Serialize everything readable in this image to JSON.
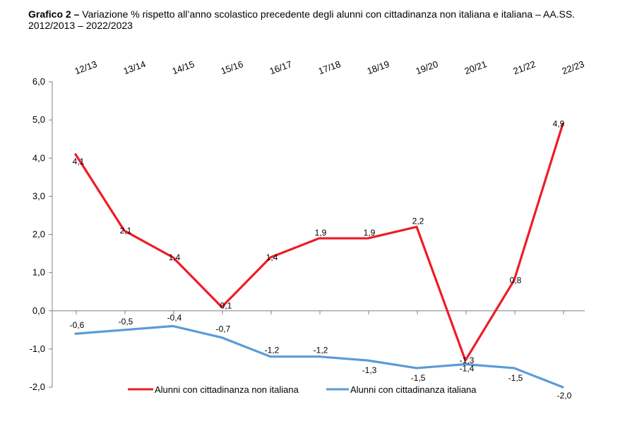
{
  "chart_data": {
    "type": "line",
    "title_bold": "Grafico 2 –",
    "title": "Variazione % rispetto all’anno scolastico precedente degli alunni con cittadinanza non italiana e italiana – AA.SS. 2012/2013 – 2022/2023",
    "categories": [
      "12/13",
      "13/14",
      "14/15",
      "15/16",
      "16/17",
      "17/18",
      "18/19",
      "19/20",
      "20/21",
      "21/22",
      "22/23"
    ],
    "ylim": [
      -2.0,
      6.0
    ],
    "yticks": [
      "-2,0",
      "-1,0",
      "0,0",
      "1,0",
      "2,0",
      "3,0",
      "4,0",
      "5,0",
      "6,0"
    ],
    "grid": false,
    "legend_position": "bottom",
    "series": [
      {
        "name": "Alunni con cittadinanza non italiana",
        "color": "#ee1c25",
        "values": [
          4.1,
          2.1,
          1.4,
          0.1,
          1.4,
          1.9,
          1.9,
          2.2,
          -1.3,
          0.8,
          4.9
        ],
        "labels": [
          "4,1",
          "2,1",
          "1,4",
          "0,1",
          "1,4",
          "1,9",
          "1,9",
          "2,2",
          "-1,3",
          "0,8",
          "4,9"
        ]
      },
      {
        "name": "Alunni con cittadinanza italiana",
        "color": "#5b9bd5",
        "values": [
          -0.6,
          -0.5,
          -0.4,
          -0.7,
          -1.2,
          -1.2,
          -1.3,
          -1.5,
          -1.4,
          -1.5,
          -2.0
        ],
        "labels": [
          "-0,6",
          "-0,5",
          "-0,4",
          "-0,7",
          "-1,2",
          "-1,2",
          "-1,3",
          "-1,5",
          "-1,4",
          "-1,5",
          "-2,0"
        ]
      }
    ]
  }
}
